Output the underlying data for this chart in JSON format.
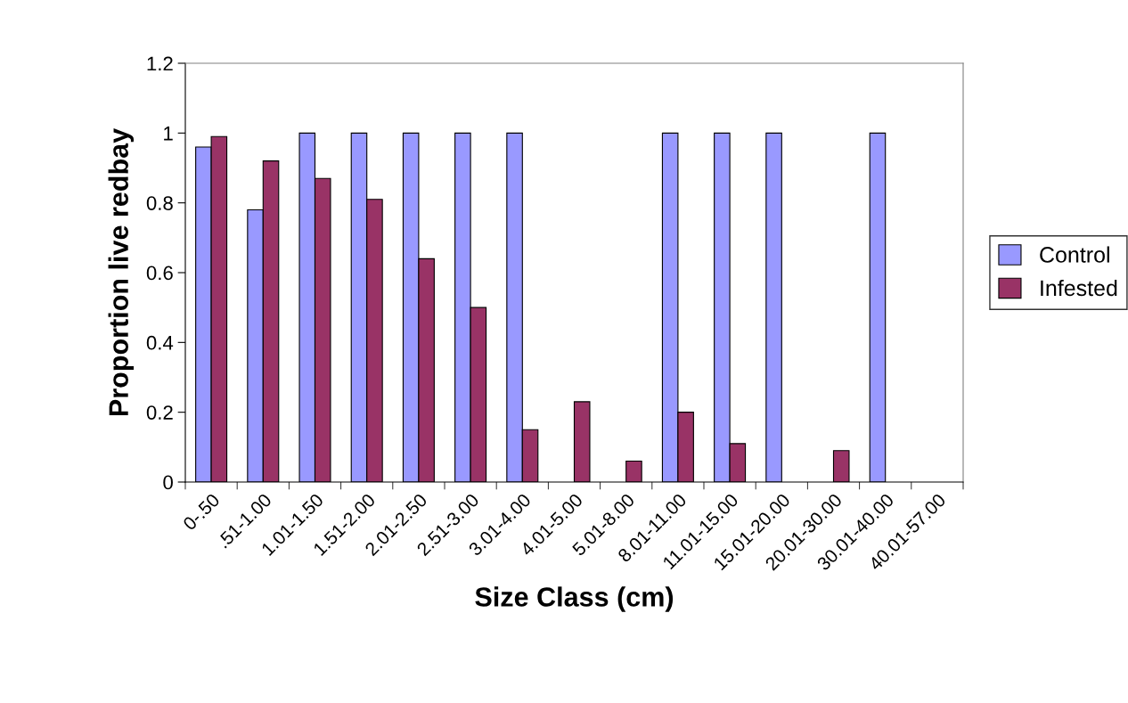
{
  "chart_data": {
    "type": "bar",
    "xlabel": "Size Class (cm)",
    "ylabel": "Proportion live redbay",
    "categories": [
      "0-.50",
      ".51-1.00",
      "1.01-1.50",
      "1.51-2.00",
      "2.01-2.50",
      "2.51-3.00",
      "3.01-4.00",
      "4.01-5.00",
      "5.01-8.00",
      "8.01-11.00",
      "11.01-15.00",
      "15.01-20.00",
      "20.01-30.00",
      "30.01-40.00",
      "40.01-57.00"
    ],
    "series": [
      {
        "name": "Control",
        "color": "#9999ff",
        "values": [
          0.96,
          0.78,
          1,
          1,
          1,
          1,
          1,
          null,
          null,
          1,
          1,
          1,
          null,
          1,
          null
        ]
      },
      {
        "name": "Infested",
        "color": "#993366",
        "values": [
          0.99,
          0.92,
          0.87,
          0.81,
          0.64,
          0.5,
          0.15,
          0.23,
          0.06,
          0.2,
          0.11,
          null,
          0.09,
          null,
          null
        ]
      }
    ],
    "ylim": [
      0,
      1.2
    ],
    "yticks": [
      0,
      0.2,
      0.4,
      0.6,
      0.8,
      1,
      1.2
    ],
    "grid": false,
    "legend": "right"
  }
}
